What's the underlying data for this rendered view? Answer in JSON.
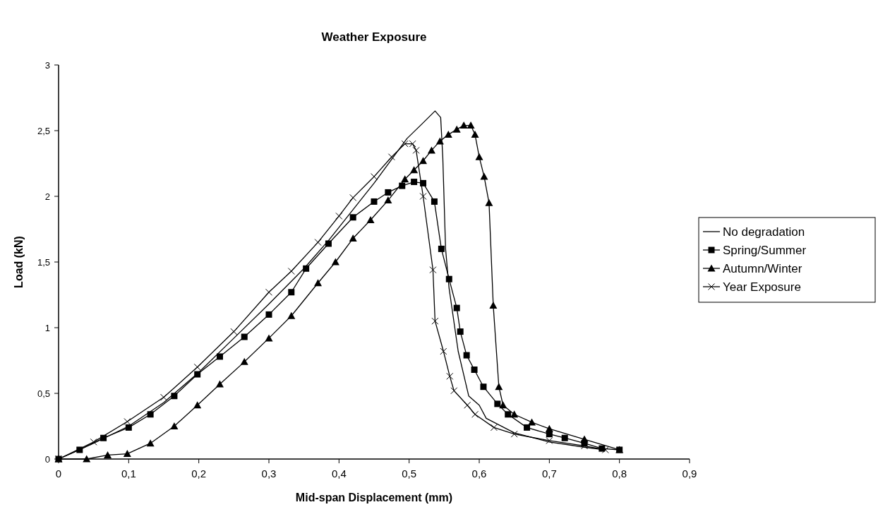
{
  "chart_data": {
    "type": "line",
    "title": "Weather Exposure",
    "xlabel": "Mid-span Displacement (mm)",
    "ylabel": "Load (kN)",
    "xlim": [
      0,
      0.9
    ],
    "xticks": [
      0,
      {
        "value": 0.1,
        "label": "0,1"
      },
      {
        "value": 0.2,
        "label": "0,2"
      },
      {
        "value": 0.3,
        "label": "0,3"
      },
      {
        "value": 0.4,
        "label": "0,4"
      },
      {
        "value": 0.5,
        "label": "0,5"
      },
      {
        "value": 0.6,
        "label": "0,6"
      },
      {
        "value": 0.7,
        "label": "0,7"
      },
      {
        "value": 0.8,
        "label": "0,8"
      },
      {
        "value": 0.9,
        "label": "0,9"
      }
    ],
    "ylim": [
      0,
      3
    ],
    "yticks": [
      0,
      {
        "value": 0.5,
        "label": "0,5"
      },
      1,
      {
        "value": 1.5,
        "label": "1,5"
      },
      2,
      {
        "value": 2.5,
        "label": "2,5"
      },
      3
    ],
    "grid": false,
    "legend": "right",
    "line_style": "solid",
    "series": [
      {
        "name": "No degradation",
        "color": "#000000",
        "marker": "none",
        "x": [
          0,
          0.05,
          0.1,
          0.15,
          0.2,
          0.25,
          0.3,
          0.35,
          0.386,
          0.45,
          0.497,
          0.52,
          0.537,
          0.545,
          0.548,
          0.552,
          0.557,
          0.57,
          0.585,
          0.6,
          0.61,
          0.65,
          0.7,
          0.75,
          0.78
        ],
        "values": [
          0,
          0.12,
          0.25,
          0.43,
          0.66,
          0.92,
          1.18,
          1.45,
          1.67,
          2.1,
          2.44,
          2.56,
          2.65,
          2.6,
          2.3,
          1.6,
          1.3,
          0.82,
          0.48,
          0.41,
          0.31,
          0.2,
          0.13,
          0.09,
          0.07
        ]
      },
      {
        "name": "Spring/Summer",
        "color": "#000000",
        "marker": "square",
        "x": [
          0,
          0.03,
          0.064,
          0.1,
          0.131,
          0.165,
          0.198,
          0.23,
          0.265,
          0.3,
          0.332,
          0.353,
          0.385,
          0.42,
          0.45,
          0.47,
          0.49,
          0.507,
          0.52,
          0.536,
          0.546,
          0.557,
          0.568,
          0.573,
          0.582,
          0.593,
          0.606,
          0.626,
          0.641,
          0.668,
          0.7,
          0.722,
          0.75,
          0.775,
          0.8
        ],
        "values": [
          0,
          0.07,
          0.16,
          0.24,
          0.34,
          0.48,
          0.645,
          0.78,
          0.93,
          1.1,
          1.27,
          1.45,
          1.64,
          1.84,
          1.96,
          2.03,
          2.08,
          2.11,
          2.1,
          1.96,
          1.6,
          1.37,
          1.15,
          0.97,
          0.79,
          0.68,
          0.55,
          0.42,
          0.34,
          0.24,
          0.19,
          0.16,
          0.12,
          0.08,
          0.07
        ]
      },
      {
        "name": "Autumn/Winter",
        "color": "#000000",
        "marker": "triangle",
        "x": [
          0,
          0.04,
          0.07,
          0.098,
          0.131,
          0.165,
          0.198,
          0.23,
          0.265,
          0.3,
          0.332,
          0.37,
          0.395,
          0.42,
          0.445,
          0.47,
          0.494,
          0.507,
          0.52,
          0.532,
          0.544,
          0.556,
          0.568,
          0.578,
          0.588,
          0.594,
          0.6,
          0.607,
          0.614,
          0.62,
          0.628,
          0.634,
          0.65,
          0.675,
          0.7,
          0.75,
          0.8
        ],
        "values": [
          0,
          0,
          0.03,
          0.04,
          0.12,
          0.25,
          0.41,
          0.57,
          0.74,
          0.92,
          1.09,
          1.34,
          1.5,
          1.68,
          1.82,
          1.97,
          2.13,
          2.2,
          2.27,
          2.35,
          2.42,
          2.47,
          2.51,
          2.54,
          2.54,
          2.47,
          2.3,
          2.15,
          1.95,
          1.17,
          0.55,
          0.41,
          0.34,
          0.28,
          0.23,
          0.15,
          0.07
        ]
      },
      {
        "name": "Year Exposure",
        "color": "#000000",
        "marker": "cross",
        "x": [
          0,
          0.05,
          0.098,
          0.15,
          0.198,
          0.25,
          0.3,
          0.332,
          0.37,
          0.4,
          0.42,
          0.45,
          0.475,
          0.494,
          0.505,
          0.51,
          0.52,
          0.534,
          0.537,
          0.549,
          0.558,
          0.564,
          0.583,
          0.594,
          0.621,
          0.65,
          0.7,
          0.75,
          0.78
        ],
        "values": [
          0,
          0.13,
          0.285,
          0.47,
          0.7,
          0.97,
          1.27,
          1.43,
          1.65,
          1.85,
          1.99,
          2.15,
          2.3,
          2.4,
          2.4,
          2.35,
          2.0,
          1.44,
          1.05,
          0.82,
          0.63,
          0.52,
          0.41,
          0.34,
          0.24,
          0.19,
          0.14,
          0.1,
          0.07
        ]
      }
    ]
  }
}
